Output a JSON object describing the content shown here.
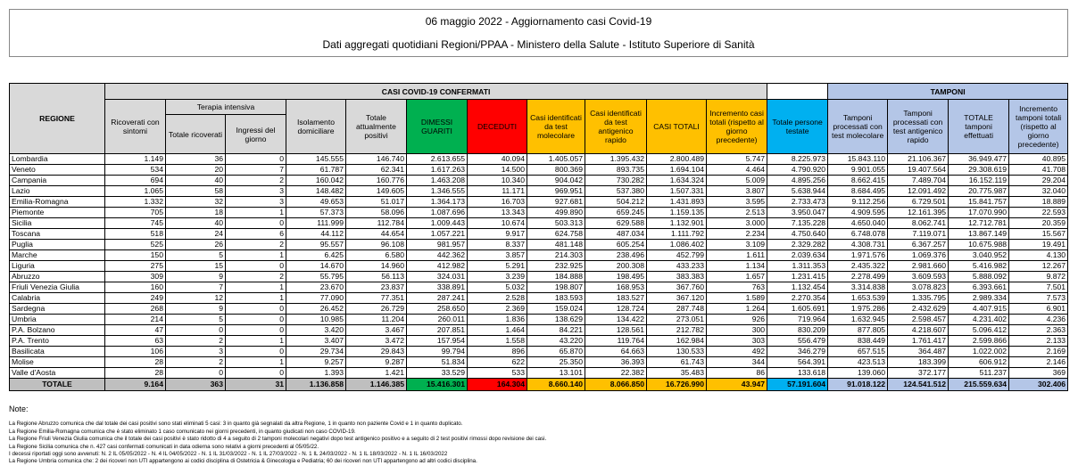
{
  "title": "06 maggio 2022 - Aggiornamento casi Covid-19",
  "subtitle": "Dati aggregati quotidiani Regioni/PPAA - Ministero della Salute - Istituto Superiore di Sanità",
  "headers": {
    "casi_group": "CASI COVID-19 CONFERMATI",
    "tamponi_group": "TAMPONI",
    "terapia_group": "Terapia intensiva",
    "cols": [
      "REGIONE",
      "Ricoverati con sintomi",
      "Totale ricoverati",
      "Ingressi del giorno",
      "Isolamento domiciliare",
      "Totale attualmente positivi",
      "DIMESSI GUARITI",
      "DECEDUTI",
      "Casi identificati da test molecolare",
      "Casi identificati da test antigenico rapido",
      "CASI TOTALI",
      "Incremento casi totali (rispetto al giorno precedente)",
      "Totale persone testate",
      "Tamponi processati con test molecolare",
      "Tamponi processati con test antigenico rapido",
      "TOTALE tamponi effettuati",
      "Incremento tamponi totali (rispetto al giorno precedente)"
    ]
  },
  "rows": [
    [
      "Lombardia",
      "1.149",
      "36",
      "0",
      "145.555",
      "146.740",
      "2.613.655",
      "40.094",
      "1.405.057",
      "1.395.432",
      "2.800.489",
      "5.747",
      "8.225.973",
      "15.843.110",
      "21.106.367",
      "36.949.477",
      "40.895"
    ],
    [
      "Veneto",
      "534",
      "20",
      "7",
      "61.787",
      "62.341",
      "1.617.263",
      "14.500",
      "800.369",
      "893.735",
      "1.694.104",
      "4.464",
      "4.790.920",
      "9.901.055",
      "19.407.564",
      "29.308.619",
      "41.708"
    ],
    [
      "Campania",
      "694",
      "40",
      "2",
      "160.042",
      "160.776",
      "1.463.208",
      "10.340",
      "904.042",
      "730.282",
      "1.634.324",
      "5.009",
      "4.895.256",
      "8.662.415",
      "7.489.704",
      "16.152.119",
      "29.204"
    ],
    [
      "Lazio",
      "1.065",
      "58",
      "3",
      "148.482",
      "149.605",
      "1.346.555",
      "11.171",
      "969.951",
      "537.380",
      "1.507.331",
      "3.807",
      "5.638.944",
      "8.684.495",
      "12.091.492",
      "20.775.987",
      "32.040"
    ],
    [
      "Emilia-Romagna",
      "1.332",
      "32",
      "3",
      "49.653",
      "51.017",
      "1.364.173",
      "16.703",
      "927.681",
      "504.212",
      "1.431.893",
      "3.595",
      "2.733.473",
      "9.112.256",
      "6.729.501",
      "15.841.757",
      "18.889"
    ],
    [
      "Piemonte",
      "705",
      "18",
      "1",
      "57.373",
      "58.096",
      "1.087.696",
      "13.343",
      "499.890",
      "659.245",
      "1.159.135",
      "2.513",
      "3.950.047",
      "4.909.595",
      "12.161.395",
      "17.070.990",
      "22.593"
    ],
    [
      "Sicilia",
      "745",
      "40",
      "0",
      "111.999",
      "112.784",
      "1.009.443",
      "10.674",
      "503.313",
      "629.588",
      "1.132.901",
      "3.000",
      "7.135.228",
      "4.650.040",
      "8.062.741",
      "12.712.781",
      "20.359"
    ],
    [
      "Toscana",
      "518",
      "24",
      "6",
      "44.112",
      "44.654",
      "1.057.221",
      "9.917",
      "624.758",
      "487.034",
      "1.111.792",
      "2.234",
      "4.750.640",
      "6.748.078",
      "7.119.071",
      "13.867.149",
      "15.567"
    ],
    [
      "Puglia",
      "525",
      "26",
      "2",
      "95.557",
      "96.108",
      "981.957",
      "8.337",
      "481.148",
      "605.254",
      "1.086.402",
      "3.109",
      "2.329.282",
      "4.308.731",
      "6.367.257",
      "10.675.988",
      "19.491"
    ],
    [
      "Marche",
      "150",
      "5",
      "1",
      "6.425",
      "6.580",
      "442.362",
      "3.857",
      "214.303",
      "238.496",
      "452.799",
      "1.611",
      "2.039.634",
      "1.971.576",
      "1.069.376",
      "3.040.952",
      "4.130"
    ],
    [
      "Liguria",
      "275",
      "15",
      "0",
      "14.670",
      "14.960",
      "412.982",
      "5.291",
      "232.925",
      "200.308",
      "433.233",
      "1.134",
      "1.311.353",
      "2.435.322",
      "2.981.660",
      "5.416.982",
      "12.267"
    ],
    [
      "Abruzzo",
      "309",
      "9",
      "2",
      "55.795",
      "56.113",
      "324.031",
      "3.239",
      "184.888",
      "198.495",
      "383.383",
      "1.657",
      "1.231.415",
      "2.278.499",
      "3.609.593",
      "5.888.092",
      "9.872"
    ],
    [
      "Friuli Venezia Giulia",
      "160",
      "7",
      "1",
      "23.670",
      "23.837",
      "338.891",
      "5.032",
      "198.807",
      "168.953",
      "367.760",
      "763",
      "1.132.454",
      "3.314.838",
      "3.078.823",
      "6.393.661",
      "7.501"
    ],
    [
      "Calabria",
      "249",
      "12",
      "1",
      "77.090",
      "77.351",
      "287.241",
      "2.528",
      "183.593",
      "183.527",
      "367.120",
      "1.589",
      "2.270.354",
      "1.653.539",
      "1.335.795",
      "2.989.334",
      "7.573"
    ],
    [
      "Sardegna",
      "268",
      "9",
      "0",
      "26.452",
      "26.729",
      "258.650",
      "2.369",
      "159.024",
      "128.724",
      "287.748",
      "1.264",
      "1.605.691",
      "1.975.286",
      "2.432.629",
      "4.407.915",
      "6.901"
    ],
    [
      "Umbria",
      "214",
      "5",
      "0",
      "10.985",
      "11.204",
      "260.011",
      "1.836",
      "138.629",
      "134.422",
      "273.051",
      "926",
      "719.964",
      "1.632.945",
      "2.598.457",
      "4.231.402",
      "4.236"
    ],
    [
      "P.A. Bolzano",
      "47",
      "0",
      "0",
      "3.420",
      "3.467",
      "207.851",
      "1.464",
      "84.221",
      "128.561",
      "212.782",
      "300",
      "830.209",
      "877.805",
      "4.218.607",
      "5.096.412",
      "2.363"
    ],
    [
      "P.A. Trento",
      "63",
      "2",
      "1",
      "3.407",
      "3.472",
      "157.954",
      "1.558",
      "43.220",
      "119.764",
      "162.984",
      "303",
      "556.479",
      "838.449",
      "1.761.417",
      "2.599.866",
      "2.133"
    ],
    [
      "Basilicata",
      "106",
      "3",
      "0",
      "29.734",
      "29.843",
      "99.794",
      "896",
      "65.870",
      "64.663",
      "130.533",
      "492",
      "346.279",
      "657.515",
      "364.487",
      "1.022.002",
      "2.169"
    ],
    [
      "Molise",
      "28",
      "2",
      "1",
      "9.257",
      "9.287",
      "51.834",
      "622",
      "25.350",
      "36.393",
      "61.743",
      "344",
      "564.391",
      "423.513",
      "183.399",
      "606.912",
      "2.146"
    ],
    [
      "Valle d'Aosta",
      "28",
      "0",
      "0",
      "1.393",
      "1.421",
      "33.529",
      "533",
      "13.101",
      "22.382",
      "35.483",
      "86",
      "133.618",
      "139.060",
      "372.177",
      "511.237",
      "369"
    ]
  ],
  "totals": [
    "TOTALE",
    "9.164",
    "363",
    "31",
    "1.136.858",
    "1.146.385",
    "15.416.301",
    "164.304",
    "8.660.140",
    "8.066.850",
    "16.726.990",
    "43.947",
    "57.191.604",
    "91.018.122",
    "124.541.512",
    "215.559.634",
    "302.406"
  ],
  "colors": {
    "dimessi": "#00b050",
    "deceduti": "#ff0000",
    "casi": "#ffc000",
    "persone": "#00b0f0",
    "tamponi": "#b4c6e7"
  },
  "notes_title": "Note:",
  "notes": [
    "La Regione Abruzzo comunica che dal totale dei casi positivi sono stati eliminati 5 casi: 3 in quanto già segnalati da altra Regione, 1 in quanto non paziente Covid e 1 in quanto duplicato.",
    "La Regione Emilia-Romagna  comunica che è stato eliminato 1 caso comunicato nei giorni precedenti, in quanto giudicati non caso COVID-19.",
    "La Regione Friuli Venezia Giulia comunica che il totale dei casi positivi è stato ridotto di 4 a seguito di 2 tamponi molecolari negativi dopo test antigenico positivo e a seguito di 2 test positivi rimossi dopo revisione dei casi.",
    "La Regione Sicilia comunica che n. 427 casi confermati comunicati in data odierna sono relativi a giorni precedenti al 05/05/22.",
    "I decessi riportati oggi sono avvenuti: N. 2 IL 05/05/2022 - N. 4 IL 04/05/2022 - N. 1 IL 31/03/2022 - N. 1 IL 27/03/2022 - N. 1 IL 24/03/2022 - N. 1 IL 18/03/2022 - N. 1 IL 16/03/2022",
    "La Regione Umbria comunica che: 2 dei ricoveri non UTI appartengono ai codici disciplina di Ostetricia & Ginecologia e Pediatria; 60 dei ricoveri non UTI appartengono ad altri codici disciplina."
  ]
}
